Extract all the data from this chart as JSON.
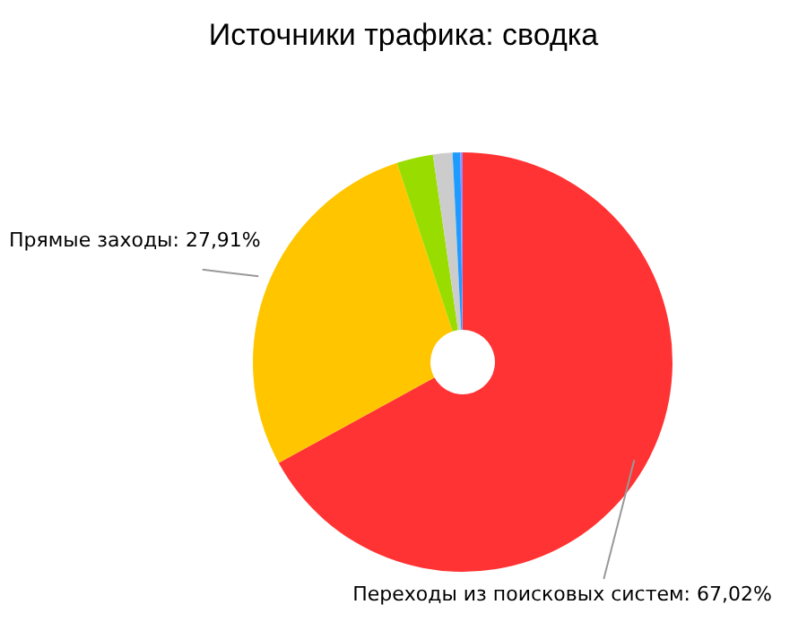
{
  "chart_data": {
    "type": "donut",
    "title": "Источники трафика: сводка",
    "categories": [
      "Переходы из поисковых систем",
      "Прямые заходы",
      null,
      null,
      null,
      null
    ],
    "values": [
      67.02,
      27.91,
      2.8,
      1.5,
      0.6,
      0.17
    ],
    "value_labels": [
      "67,02%",
      "27,91%",
      null,
      null,
      null,
      null
    ],
    "colors": [
      "#ff3333",
      "#ffc600",
      "#99dd00",
      "#cccccc",
      "#1e9bff",
      "#9a8cff"
    ],
    "legend": false
  }
}
